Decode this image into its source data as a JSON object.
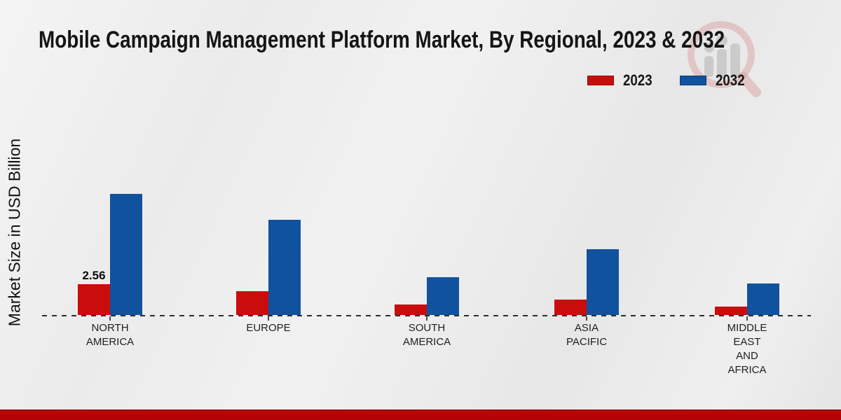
{
  "title": "Mobile Campaign Management Platform Market, By Regional, 2023 & 2032",
  "y_axis_label": "Market Size in USD Billion",
  "watermark_icon": "magnifier-bar-chart-logo",
  "legend": {
    "items": [
      {
        "label": "2023",
        "color": "#c90d0d"
      },
      {
        "label": "2032",
        "color": "#11529e"
      }
    ]
  },
  "chart_data": {
    "type": "bar",
    "categories": [
      "NORTH AMERICA",
      "EUROPE",
      "SOUTH AMERICA",
      "ASIA PACIFIC",
      "MIDDLE EAST AND AFRICA"
    ],
    "category_label_lines": [
      [
        "NORTH",
        "AMERICA"
      ],
      [
        "EUROPE"
      ],
      [
        "SOUTH",
        "AMERICA"
      ],
      [
        "ASIA",
        "PACIFIC"
      ],
      [
        "MIDDLE",
        "EAST",
        "AND",
        "AFRICA"
      ]
    ],
    "series": [
      {
        "name": "2023",
        "color": "#c90d0d",
        "values": [
          2.56,
          2.0,
          0.87,
          1.3,
          0.7
        ]
      },
      {
        "name": "2032",
        "color": "#11529e",
        "values": [
          10.06,
          7.9,
          3.15,
          5.47,
          2.6
        ]
      }
    ],
    "title": "Mobile Campaign Management Platform Market, By Regional, 2023 & 2032",
    "xlabel": "",
    "ylabel": "Market Size in USD Billion",
    "ylim": [
      0,
      11
    ],
    "grid": false,
    "y_axis_ticks_visible": false,
    "baseline_style": "dashed",
    "legend_position": "top-right",
    "annotations": [
      {
        "series": "2023",
        "category": "NORTH AMERICA",
        "text": "2.56"
      }
    ]
  },
  "colors": {
    "background": "#ececec",
    "title_text": "#151515",
    "axis_line": "#2e2e2e",
    "bottom_bar": "#b30404"
  }
}
